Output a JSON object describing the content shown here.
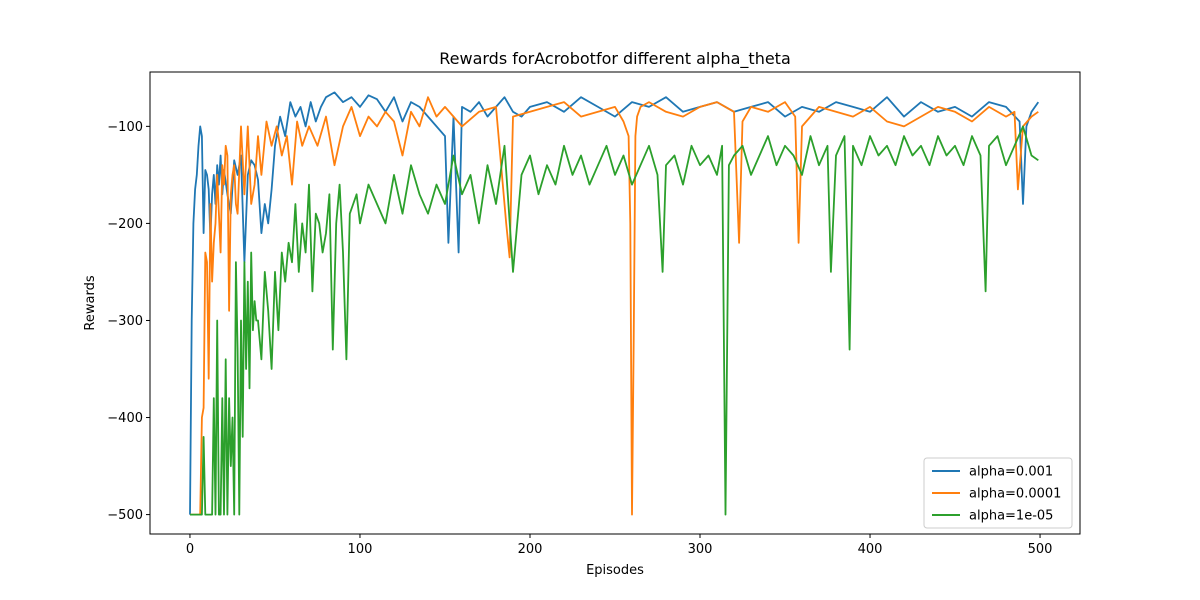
{
  "chart_data": {
    "type": "line",
    "title": "Rewards forAcrobotfor different alpha_theta",
    "xlabel": "Episodes",
    "ylabel": "Rewards",
    "xlim": [
      -23.5,
      523.5
    ],
    "ylim": [
      -520,
      -44
    ],
    "xticks": [
      0,
      100,
      200,
      300,
      400,
      500
    ],
    "yticks": [
      -500,
      -400,
      -300,
      -200,
      -100
    ],
    "xtick_labels": [
      "0",
      "100",
      "200",
      "300",
      "400",
      "500"
    ],
    "ytick_labels": [
      "−500",
      "−400",
      "−300",
      "−200",
      "−100"
    ],
    "grid": false,
    "legend_position": "lower-right",
    "series": [
      {
        "name": "alpha=0.001",
        "color": "#1f77b4",
        "x": [
          0,
          1,
          2,
          3,
          4,
          5,
          6,
          7,
          8,
          9,
          10,
          11,
          12,
          13,
          14,
          15,
          16,
          17,
          18,
          19,
          20,
          22,
          24,
          26,
          28,
          30,
          32,
          34,
          36,
          38,
          40,
          42,
          44,
          46,
          48,
          50,
          53,
          56,
          59,
          62,
          65,
          68,
          71,
          74,
          77,
          80,
          85,
          90,
          95,
          100,
          105,
          110,
          115,
          120,
          125,
          130,
          135,
          140,
          145,
          150,
          152,
          155,
          158,
          160,
          165,
          170,
          175,
          180,
          185,
          190,
          195,
          200,
          210,
          220,
          230,
          240,
          250,
          260,
          270,
          280,
          290,
          300,
          310,
          320,
          330,
          340,
          350,
          360,
          370,
          380,
          390,
          400,
          410,
          420,
          430,
          440,
          450,
          460,
          470,
          480,
          488,
          490,
          492,
          495,
          499
        ],
        "y": [
          -500,
          -300,
          -200,
          -165,
          -150,
          -120,
          -100,
          -110,
          -210,
          -145,
          -150,
          -165,
          -215,
          -170,
          -150,
          -180,
          -140,
          -160,
          -130,
          -170,
          -145,
          -170,
          -190,
          -135,
          -150,
          -130,
          -240,
          -150,
          -135,
          -140,
          -155,
          -210,
          -180,
          -200,
          -165,
          -120,
          -90,
          -110,
          -75,
          -90,
          -80,
          -100,
          -75,
          -95,
          -80,
          -70,
          -65,
          -75,
          -70,
          -80,
          -68,
          -72,
          -85,
          -70,
          -95,
          -75,
          -80,
          -90,
          -100,
          -110,
          -220,
          -90,
          -230,
          -80,
          -85,
          -75,
          -90,
          -80,
          -70,
          -85,
          -90,
          -80,
          -75,
          -85,
          -70,
          -80,
          -90,
          -75,
          -80,
          -70,
          -85,
          -80,
          -75,
          -85,
          -80,
          -75,
          -90,
          -80,
          -85,
          -75,
          -80,
          -85,
          -70,
          -90,
          -75,
          -85,
          -80,
          -90,
          -75,
          -80,
          -95,
          -180,
          -100,
          -85,
          -75
        ]
      },
      {
        "name": "alpha=0.0001",
        "color": "#ff7f0e",
        "x": [
          0,
          2,
          4,
          6,
          7,
          8,
          9,
          10,
          11,
          12,
          13,
          14,
          15,
          16,
          17,
          18,
          19,
          20,
          21,
          22,
          23,
          24,
          25,
          26,
          27,
          28,
          30,
          32,
          34,
          36,
          38,
          40,
          42,
          45,
          48,
          51,
          54,
          57,
          60,
          63,
          66,
          70,
          75,
          80,
          85,
          90,
          95,
          100,
          105,
          110,
          115,
          120,
          125,
          130,
          135,
          140,
          145,
          150,
          160,
          170,
          180,
          186,
          188,
          190,
          200,
          210,
          220,
          230,
          240,
          250,
          255,
          258,
          259,
          260,
          261,
          262,
          263,
          265,
          270,
          280,
          290,
          300,
          310,
          320,
          323,
          325,
          330,
          340,
          350,
          356,
          358,
          360,
          370,
          380,
          390,
          400,
          410,
          420,
          430,
          440,
          450,
          460,
          470,
          480,
          485,
          487,
          490,
          495,
          499
        ],
        "y": [
          -500,
          -500,
          -500,
          -500,
          -400,
          -390,
          -230,
          -240,
          -360,
          -180,
          -260,
          -220,
          -200,
          -150,
          -190,
          -230,
          -140,
          -160,
          -120,
          -130,
          -290,
          -170,
          -150,
          -140,
          -180,
          -190,
          -100,
          -170,
          -100,
          -180,
          -160,
          -110,
          -150,
          -95,
          -120,
          -100,
          -130,
          -110,
          -160,
          -95,
          -120,
          -100,
          -120,
          -90,
          -140,
          -100,
          -80,
          -110,
          -90,
          -100,
          -85,
          -95,
          -130,
          -85,
          -100,
          -70,
          -90,
          -80,
          -100,
          -85,
          -80,
          -200,
          -235,
          -90,
          -85,
          -80,
          -75,
          -90,
          -85,
          -80,
          -95,
          -110,
          -200,
          -500,
          -320,
          -110,
          -90,
          -80,
          -75,
          -85,
          -90,
          -80,
          -75,
          -85,
          -220,
          -95,
          -80,
          -85,
          -75,
          -90,
          -220,
          -100,
          -80,
          -85,
          -90,
          -80,
          -95,
          -100,
          -90,
          -80,
          -85,
          -95,
          -80,
          -90,
          -85,
          -165,
          -100,
          -90,
          -85
        ]
      },
      {
        "name": "alpha=1e-05",
        "color": "#2ca02c",
        "x": [
          0,
          5,
          7,
          8,
          9,
          10,
          11,
          12,
          13,
          14,
          15,
          16,
          17,
          18,
          19,
          20,
          21,
          22,
          23,
          24,
          25,
          26,
          27,
          28,
          29,
          30,
          31,
          32,
          33,
          34,
          35,
          36,
          37,
          38,
          39,
          40,
          42,
          44,
          46,
          48,
          50,
          52,
          54,
          56,
          58,
          60,
          62,
          64,
          66,
          68,
          70,
          72,
          74,
          76,
          78,
          80,
          82,
          84,
          86,
          88,
          90,
          92,
          94,
          96,
          98,
          100,
          105,
          110,
          115,
          120,
          125,
          130,
          135,
          140,
          145,
          150,
          155,
          160,
          165,
          170,
          175,
          180,
          185,
          190,
          195,
          200,
          205,
          210,
          215,
          220,
          225,
          230,
          235,
          240,
          245,
          250,
          255,
          260,
          265,
          270,
          275,
          278,
          280,
          285,
          290,
          295,
          300,
          305,
          310,
          313,
          315,
          317,
          320,
          325,
          330,
          335,
          340,
          345,
          350,
          355,
          360,
          365,
          370,
          375,
          377,
          380,
          385,
          388,
          390,
          395,
          400,
          405,
          410,
          415,
          420,
          425,
          430,
          435,
          440,
          445,
          450,
          455,
          460,
          465,
          468,
          470,
          475,
          480,
          485,
          490,
          495,
          499
        ],
        "y": [
          -500,
          -500,
          -500,
          -420,
          -500,
          -500,
          -500,
          -500,
          -500,
          -380,
          -500,
          -300,
          -500,
          -500,
          -380,
          -500,
          -340,
          -500,
          -380,
          -450,
          -400,
          -500,
          -240,
          -330,
          -500,
          -300,
          -420,
          -240,
          -350,
          -260,
          -370,
          -230,
          -310,
          -280,
          -300,
          -300,
          -340,
          -250,
          -290,
          -350,
          -250,
          -310,
          -230,
          -260,
          -220,
          -240,
          -180,
          -250,
          -200,
          -230,
          -160,
          -270,
          -190,
          -200,
          -230,
          -210,
          -170,
          -330,
          -200,
          -160,
          -230,
          -340,
          -190,
          -180,
          -170,
          -200,
          -160,
          -180,
          -200,
          -150,
          -190,
          -140,
          -170,
          -190,
          -160,
          -180,
          -130,
          -170,
          -150,
          -200,
          -140,
          -180,
          -120,
          -250,
          -150,
          -130,
          -170,
          -140,
          -160,
          -120,
          -150,
          -130,
          -160,
          -140,
          -120,
          -150,
          -130,
          -160,
          -140,
          -120,
          -150,
          -250,
          -140,
          -130,
          -160,
          -120,
          -140,
          -130,
          -150,
          -120,
          -500,
          -140,
          -130,
          -120,
          -150,
          -130,
          -110,
          -140,
          -120,
          -130,
          -150,
          -110,
          -140,
          -120,
          -250,
          -130,
          -110,
          -330,
          -120,
          -140,
          -110,
          -130,
          -120,
          -140,
          -110,
          -130,
          -120,
          -140,
          -110,
          -130,
          -120,
          -140,
          -110,
          -130,
          -270,
          -120,
          -110,
          -140,
          -120,
          -100,
          -130,
          -135
        ]
      }
    ]
  }
}
